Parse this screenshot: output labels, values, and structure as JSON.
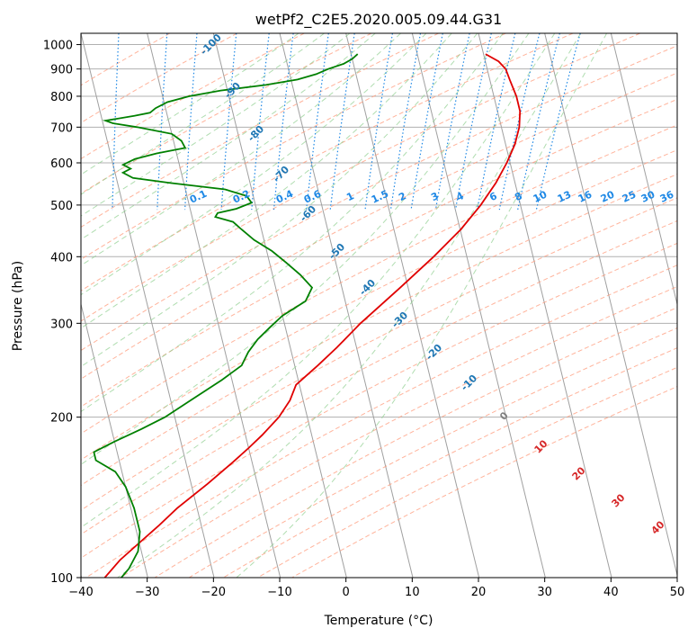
{
  "chart_data": {
    "type": "line",
    "title": "wetPf2_C2E5.2020.005.09.44.G31",
    "xlabel": "Temperature (°C)",
    "ylabel": "Pressure (hPa)",
    "xlim": [
      -40,
      50
    ],
    "ylim_pressure": [
      1050,
      100
    ],
    "log_pressure_axis": true,
    "grid": true,
    "x_ticks": [
      "−40",
      "−30",
      "−20",
      "−10",
      "0",
      "10",
      "20",
      "30",
      "40",
      "50"
    ],
    "y_ticks": [
      "100",
      "200",
      "300",
      "400",
      "500",
      "600",
      "700",
      "800",
      "900",
      "1000"
    ],
    "series": [
      {
        "color": "#e00000",
        "points": [
          {
            "p": 960,
            "t": 20.3
          },
          {
            "p": 930,
            "t": 22.0
          },
          {
            "p": 900,
            "t": 22.8
          },
          {
            "p": 860,
            "t": 23.0
          },
          {
            "p": 800,
            "t": 23.4
          },
          {
            "p": 750,
            "t": 23.4
          },
          {
            "p": 700,
            "t": 22.7
          },
          {
            "p": 650,
            "t": 21.4
          },
          {
            "p": 600,
            "t": 19.5
          },
          {
            "p": 550,
            "t": 17.1
          },
          {
            "p": 500,
            "t": 14.0
          },
          {
            "p": 450,
            "t": 10.1
          },
          {
            "p": 400,
            "t": 5.0
          },
          {
            "p": 350,
            "t": -1.2
          },
          {
            "p": 300,
            "t": -8.5
          },
          {
            "p": 270,
            "t": -13.0
          },
          {
            "p": 250,
            "t": -16.5
          },
          {
            "p": 230,
            "t": -20.5
          },
          {
            "p": 215,
            "t": -22.0
          },
          {
            "p": 200,
            "t": -24.3
          },
          {
            "p": 185,
            "t": -27.5
          },
          {
            "p": 175,
            "t": -30.0
          },
          {
            "p": 165,
            "t": -32.8
          },
          {
            "p": 150,
            "t": -37.5
          },
          {
            "p": 135,
            "t": -43.0
          },
          {
            "p": 125,
            "t": -46.5
          },
          {
            "p": 115,
            "t": -50.5
          },
          {
            "p": 108,
            "t": -53.5
          },
          {
            "p": 100,
            "t": -56.5
          }
        ]
      },
      {
        "color": "#008000",
        "points": [
          {
            "p": 960,
            "t": 1.0
          },
          {
            "p": 940,
            "t": 0.0
          },
          {
            "p": 920,
            "t": -1.5
          },
          {
            "p": 900,
            "t": -4.0
          },
          {
            "p": 880,
            "t": -6.0
          },
          {
            "p": 860,
            "t": -9.0
          },
          {
            "p": 840,
            "t": -14.0
          },
          {
            "p": 820,
            "t": -21.0
          },
          {
            "p": 800,
            "t": -26.0
          },
          {
            "p": 780,
            "t": -29.5
          },
          {
            "p": 760,
            "t": -31.5
          },
          {
            "p": 745,
            "t": -32.5
          },
          {
            "p": 735,
            "t": -35.0
          },
          {
            "p": 720,
            "t": -39.5
          },
          {
            "p": 712,
            "t": -38.5
          },
          {
            "p": 700,
            "t": -35.0
          },
          {
            "p": 680,
            "t": -30.0
          },
          {
            "p": 660,
            "t": -28.8
          },
          {
            "p": 640,
            "t": -28.5
          },
          {
            "p": 625,
            "t": -33.0
          },
          {
            "p": 610,
            "t": -36.5
          },
          {
            "p": 595,
            "t": -38.5
          },
          {
            "p": 585,
            "t": -37.5
          },
          {
            "p": 575,
            "t": -38.8
          },
          {
            "p": 562,
            "t": -37.5
          },
          {
            "p": 550,
            "t": -32.0
          },
          {
            "p": 535,
            "t": -24.0
          },
          {
            "p": 520,
            "t": -21.0
          },
          {
            "p": 505,
            "t": -20.5
          },
          {
            "p": 492,
            "t": -23.0
          },
          {
            "p": 483,
            "t": -26.0
          },
          {
            "p": 475,
            "t": -26.5
          },
          {
            "p": 465,
            "t": -24.0
          },
          {
            "p": 450,
            "t": -23.0
          },
          {
            "p": 430,
            "t": -21.5
          },
          {
            "p": 410,
            "t": -19.2
          },
          {
            "p": 390,
            "t": -17.5
          },
          {
            "p": 370,
            "t": -15.8
          },
          {
            "p": 350,
            "t": -14.5
          },
          {
            "p": 330,
            "t": -16.0
          },
          {
            "p": 310,
            "t": -20.0
          },
          {
            "p": 295,
            "t": -22.3
          },
          {
            "p": 280,
            "t": -24.6
          },
          {
            "p": 265,
            "t": -26.5
          },
          {
            "p": 250,
            "t": -28.0
          },
          {
            "p": 235,
            "t": -31.5
          },
          {
            "p": 215,
            "t": -37.0
          },
          {
            "p": 200,
            "t": -41.5
          },
          {
            "p": 190,
            "t": -45.5
          },
          {
            "p": 180,
            "t": -50.0
          },
          {
            "p": 172,
            "t": -53.5
          },
          {
            "p": 166,
            "t": -53.5
          },
          {
            "p": 158,
            "t": -51.0
          },
          {
            "p": 148,
            "t": -50.0
          },
          {
            "p": 135,
            "t": -49.5
          },
          {
            "p": 122,
            "t": -49.5
          },
          {
            "p": 112,
            "t": -50.5
          },
          {
            "p": 104,
            "t": -52.5
          },
          {
            "p": 100,
            "t": -54.0
          }
        ]
      }
    ],
    "dry_adiabat_labels": [
      "-100",
      "-90",
      "-80",
      "-70",
      "-60",
      "-50",
      "-40",
      "-30",
      "-20",
      "-10"
    ],
    "mixing_ratio_labels": [
      "0.1",
      "0.2",
      "0.4",
      "0.6",
      "1",
      "1.5",
      "2",
      "3",
      "4",
      "6",
      "8",
      "10",
      "13",
      "16",
      "20",
      "25",
      "30",
      "36"
    ],
    "moist_adiabat_labels": [
      "0",
      "10",
      "20",
      "30",
      "40"
    ],
    "colors": {
      "dry_adiabat_label": "#1f77b4",
      "mixing_ratio": "#1e88e5",
      "moist_adiabat_label": "#d62728",
      "moist_adiabat_zero_label": "#808080",
      "dry_adiabat_line": "#ff9a7a",
      "moist_adiabat_line": "#8fcf8f",
      "isotherm": "#a0a0a0"
    }
  }
}
